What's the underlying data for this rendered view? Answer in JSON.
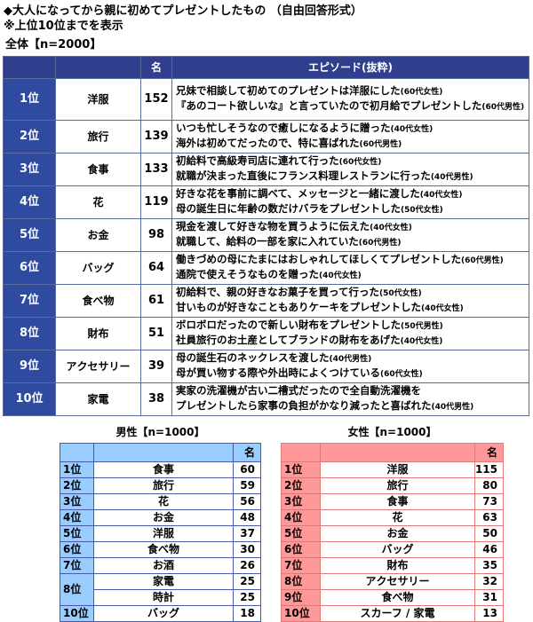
{
  "title": "◆大人になってから親に初めてプレゼントしたもの （自由回答形式）",
  "note": "※上位10位までを表示",
  "overall": {
    "label": "全体【n=2000】",
    "headers": [
      "",
      "",
      "名",
      "エピソード(抜粋)"
    ],
    "rows": [
      {
        "rank": "1位",
        "item": "洋服",
        "count": "152",
        "ep": [
          [
            "兄妹で相談して初めてのプレゼントは洋服にした",
            "(60代女性)"
          ],
          [
            "『あのコート欲しいな』と言っていたので初月給でプレゼントした",
            "(60代男性)"
          ]
        ]
      },
      {
        "rank": "2位",
        "item": "旅行",
        "count": "139",
        "ep": [
          [
            "いつも忙しそうなので癒しになるように贈った",
            "(40代女性)"
          ],
          [
            "海外は初めてだったので、特に喜ばれた",
            "(60代男性)"
          ]
        ]
      },
      {
        "rank": "3位",
        "item": "食事",
        "count": "133",
        "ep": [
          [
            "初給料で高級寿司店に連れて行った",
            "(60代女性)"
          ],
          [
            "就職が決まった直後にフランス料理レストランに行った",
            "(40代男性)"
          ]
        ]
      },
      {
        "rank": "4位",
        "item": "花",
        "count": "119",
        "ep": [
          [
            "好きな花を事前に調べて、メッセージと一緒に渡した",
            "(40代女性)"
          ],
          [
            "母の誕生日に年齢の数だけバラをプレゼントした",
            "(50代女性)"
          ]
        ]
      },
      {
        "rank": "5位",
        "item": "お金",
        "count": "98",
        "ep": [
          [
            "現金を渡して好きな物を買うように伝えた",
            "(40代女性)"
          ],
          [
            "就職して、給料の一部を家に入れていた",
            "(60代男性)"
          ]
        ]
      },
      {
        "rank": "6位",
        "item": "バッグ",
        "count": "64",
        "ep": [
          [
            "働きづめの母にたまにはおしゃれしてほしくてプレゼントした",
            "(60代男性)"
          ],
          [
            "通院で使えそうなものを贈った",
            "(40代女性)"
          ]
        ]
      },
      {
        "rank": "7位",
        "item": "食べ物",
        "count": "61",
        "ep": [
          [
            "初給料で、親の好きなお菓子を買って行った",
            "(50代女性)"
          ],
          [
            "甘いものが好きなこともありケーキをプレゼントした",
            "(40代女性)"
          ]
        ]
      },
      {
        "rank": "8位",
        "item": "財布",
        "count": "51",
        "ep": [
          [
            "ボロボロだったので新しい財布をプレゼントした",
            "(50代男性)"
          ],
          [
            "社員旅行のお土産としてブランドの財布をあげた",
            "(40代女性)"
          ]
        ]
      },
      {
        "rank": "9位",
        "item": "アクセサリー",
        "count": "39",
        "ep": [
          [
            "母の誕生石のネックレスを渡した",
            "(40代男性)"
          ],
          [
            "母が買い物する際や外出時によくつけている",
            "(60代女性)"
          ]
        ]
      },
      {
        "rank": "10位",
        "item": "家電",
        "count": "38",
        "ep": [
          [
            "実家の洗濯機が古い二槽式だったので全自動洗濯機を",
            ""
          ],
          [
            "プレゼントしたら家事の負担がかなり減ったと喜ばれた",
            "(40代男性)"
          ]
        ]
      }
    ]
  },
  "male": {
    "label": "男性【n=1000】",
    "unit": "名",
    "rows": [
      {
        "rank": "1位",
        "item": "食事",
        "count": "60"
      },
      {
        "rank": "2位",
        "item": "旅行",
        "count": "59"
      },
      {
        "rank": "3位",
        "item": "花",
        "count": "56"
      },
      {
        "rank": "4位",
        "item": "お金",
        "count": "48"
      },
      {
        "rank": "5位",
        "item": "洋服",
        "count": "37"
      },
      {
        "rank": "6位",
        "item": "食べ物",
        "count": "30"
      },
      {
        "rank": "7位",
        "item": "お酒",
        "count": "26"
      },
      {
        "rank": "8位",
        "item": "家電",
        "count": "25"
      },
      {
        "rank": "",
        "item": "時計",
        "count": "25"
      },
      {
        "rank": "10位",
        "item": "バッグ",
        "count": "18"
      }
    ]
  },
  "female": {
    "label": "女性【n=1000】",
    "unit": "名",
    "rows": [
      {
        "rank": "1位",
        "item": "洋服",
        "count": "115"
      },
      {
        "rank": "2位",
        "item": "旅行",
        "count": "80"
      },
      {
        "rank": "3位",
        "item": "食事",
        "count": "73"
      },
      {
        "rank": "4位",
        "item": "花",
        "count": "63"
      },
      {
        "rank": "5位",
        "item": "お金",
        "count": "50"
      },
      {
        "rank": "6位",
        "item": "バッグ",
        "count": "46"
      },
      {
        "rank": "7位",
        "item": "財布",
        "count": "35"
      },
      {
        "rank": "8位",
        "item": "アクセサリー",
        "count": "32"
      },
      {
        "rank": "9位",
        "item": "食べ物",
        "count": "31"
      },
      {
        "rank": "10位",
        "item": "スカーフ / 家電",
        "count": "13"
      }
    ]
  },
  "colors": {
    "header": "#2f3f8e",
    "rank": "#2f4ba0",
    "male": "#99ccff",
    "female": "#ff9999"
  }
}
